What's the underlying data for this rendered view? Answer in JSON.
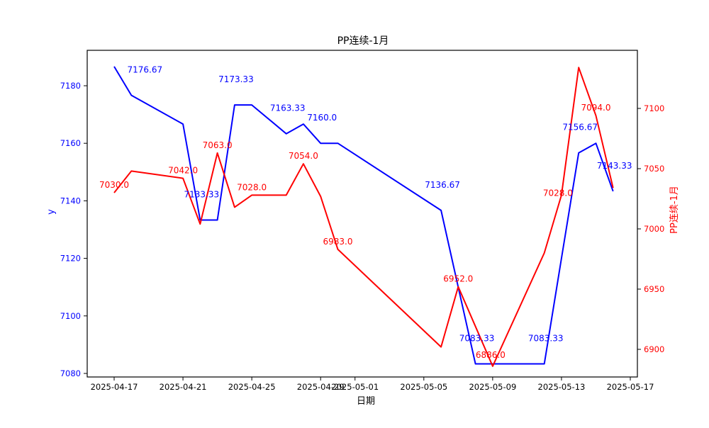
{
  "page": {
    "background": "#ffffff",
    "frame_color": "#000000"
  },
  "chart_data": {
    "type": "line",
    "title": "PP连续-1月",
    "xlabel": "日期",
    "grid": false,
    "legend": null,
    "left_axis": {
      "label": "y",
      "color": "#0000ff",
      "ticks": [
        7080,
        7100,
        7120,
        7140,
        7160,
        7180
      ],
      "range": [
        7078.8,
        7192.3
      ]
    },
    "right_axis": {
      "label": "PP连续-1月",
      "color": "#ff0000",
      "ticks": [
        6900,
        6950,
        7000,
        7050,
        7100
      ],
      "range": [
        6877,
        7148
      ]
    },
    "x_axis": {
      "tick_labels": [
        "2025-04-17",
        "2025-04-21",
        "2025-04-25",
        "2025-04-29",
        "2025-05-01",
        "2025-05-05",
        "2025-05-09",
        "2025-05-13",
        "2025-05-17"
      ],
      "range": [
        "2025-04-17",
        "2025-05-17"
      ]
    },
    "series": [
      {
        "name": "y",
        "axis": "left",
        "color": "#0000ff",
        "points": [
          {
            "date": "2025-04-17",
            "value": 7186.67,
            "label": null,
            "estimated": true
          },
          {
            "date": "2025-04-18",
            "value": 7176.67,
            "label": "7176.67"
          },
          {
            "date": "2025-04-21",
            "value": 7166.67,
            "label": null,
            "estimated": true
          },
          {
            "date": "2025-04-22",
            "value": 7133.33,
            "label": "7133.33"
          },
          {
            "date": "2025-04-23",
            "value": 7133.33,
            "label": null,
            "estimated": true
          },
          {
            "date": "2025-04-24",
            "value": 7173.33,
            "label": "7173.33"
          },
          {
            "date": "2025-04-25",
            "value": 7173.33,
            "label": null,
            "estimated": true
          },
          {
            "date": "2025-04-27",
            "value": 7163.33,
            "label": "7163.33"
          },
          {
            "date": "2025-04-28",
            "value": 7166.67,
            "label": null,
            "estimated": true
          },
          {
            "date": "2025-04-29",
            "value": 7160.0,
            "label": "7160.0"
          },
          {
            "date": "2025-04-30",
            "value": 7160.0,
            "label": null,
            "estimated": true
          },
          {
            "date": "2025-05-06",
            "value": 7136.67,
            "label": "7136.67"
          },
          {
            "date": "2025-05-07",
            "value": 7110.0,
            "label": null,
            "estimated": true
          },
          {
            "date": "2025-05-08",
            "value": 7083.33,
            "label": "7083.33"
          },
          {
            "date": "2025-05-09",
            "value": 7083.33,
            "label": null,
            "estimated": true
          },
          {
            "date": "2025-05-12",
            "value": 7083.33,
            "label": "7083.33"
          },
          {
            "date": "2025-05-13",
            "value": 7120.0,
            "label": null,
            "estimated": true
          },
          {
            "date": "2025-05-14",
            "value": 7156.67,
            "label": "7156.67"
          },
          {
            "date": "2025-05-15",
            "value": 7160.0,
            "label": null,
            "estimated": true
          },
          {
            "date": "2025-05-16",
            "value": 7143.33,
            "label": "7143.33"
          }
        ]
      },
      {
        "name": "PP连续-1月",
        "axis": "right",
        "color": "#ff0000",
        "points": [
          {
            "date": "2025-04-17",
            "value": 7030.0,
            "label": "7030.0"
          },
          {
            "date": "2025-04-18",
            "value": 7048.0,
            "label": null,
            "estimated": true
          },
          {
            "date": "2025-04-21",
            "value": 7042.0,
            "label": "7042.0"
          },
          {
            "date": "2025-04-22",
            "value": 7004.0,
            "label": null,
            "estimated": true
          },
          {
            "date": "2025-04-23",
            "value": 7063.0,
            "label": "7063.0"
          },
          {
            "date": "2025-04-24",
            "value": 7018.0,
            "label": null,
            "estimated": true
          },
          {
            "date": "2025-04-25",
            "value": 7028.0,
            "label": "7028.0"
          },
          {
            "date": "2025-04-27",
            "value": 7028.0,
            "label": null,
            "estimated": true
          },
          {
            "date": "2025-04-28",
            "value": 7054.0,
            "label": "7054.0"
          },
          {
            "date": "2025-04-29",
            "value": 7027.0,
            "label": null,
            "estimated": true
          },
          {
            "date": "2025-04-30",
            "value": 6983.0,
            "label": "6983.0"
          },
          {
            "date": "2025-05-06",
            "value": 6902.0,
            "label": null,
            "estimated": true
          },
          {
            "date": "2025-05-07",
            "value": 6952.0,
            "label": "6952.0"
          },
          {
            "date": "2025-05-08",
            "value": 6919.0,
            "label": null,
            "estimated": true
          },
          {
            "date": "2025-05-09",
            "value": 6886.0,
            "label": "6886.0"
          },
          {
            "date": "2025-05-12",
            "value": 6980.0,
            "label": null,
            "estimated": true
          },
          {
            "date": "2025-05-13",
            "value": 7028.0,
            "label": "7028.0"
          },
          {
            "date": "2025-05-14",
            "value": 7134.0,
            "label": null,
            "estimated": true
          },
          {
            "date": "2025-05-15",
            "value": 7094.0,
            "label": "7094.0"
          },
          {
            "date": "2025-05-16",
            "value": 7034.0,
            "label": null,
            "estimated": true
          }
        ]
      }
    ]
  }
}
